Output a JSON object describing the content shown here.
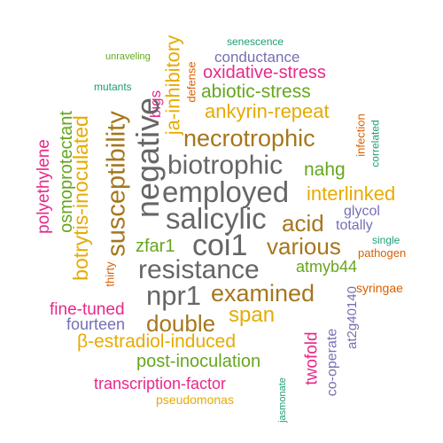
{
  "palette": {
    "teal": "#1b9e77",
    "orange": "#d95f02",
    "purple": "#7570b3",
    "magenta": "#e7298a",
    "green": "#66a61e",
    "gold": "#e6ab02",
    "brown": "#a6761d",
    "gray": "#666666"
  },
  "words": [
    {
      "text": "senescence",
      "color": "#1b9e77"
    },
    {
      "text": "unraveling",
      "color": "#66a61e"
    },
    {
      "text": "conductance",
      "color": "#7570b3"
    },
    {
      "text": "ja-inhibitory",
      "color": "#e6ab02"
    },
    {
      "text": "defense",
      "color": "#d95f02"
    },
    {
      "text": "oxidative-stress",
      "color": "#e7298a"
    },
    {
      "text": "mutants",
      "color": "#1b9e77"
    },
    {
      "text": "abiotic-stress",
      "color": "#66a61e"
    },
    {
      "text": "bigs",
      "color": "#e7298a"
    },
    {
      "text": "ankyrin-repeat",
      "color": "#e6ab02"
    },
    {
      "text": "infection",
      "color": "#d95f02"
    },
    {
      "text": "correlated",
      "color": "#1b9e77"
    },
    {
      "text": "osmoprotectant",
      "color": "#66a61e"
    },
    {
      "text": "negative",
      "color": "#666666"
    },
    {
      "text": "necrotrophic",
      "color": "#a6761d"
    },
    {
      "text": "polyethylene",
      "color": "#e7298a"
    },
    {
      "text": "botrytis-inoculated",
      "color": "#e6ab02"
    },
    {
      "text": "susceptibility",
      "color": "#a6761d"
    },
    {
      "text": "biotrophic",
      "color": "#666666"
    },
    {
      "text": "nahg",
      "color": "#66a61e"
    },
    {
      "text": "employed",
      "color": "#666666"
    },
    {
      "text": "interlinked",
      "color": "#e6ab02"
    },
    {
      "text": "salicylic",
      "color": "#666666"
    },
    {
      "text": "glycol",
      "color": "#7570b3"
    },
    {
      "text": "acid",
      "color": "#a6761d"
    },
    {
      "text": "totally",
      "color": "#7570b3"
    },
    {
      "text": "zfar1",
      "color": "#66a61e"
    },
    {
      "text": "coi1",
      "color": "#666666"
    },
    {
      "text": "various",
      "color": "#a6761d"
    },
    {
      "text": "single",
      "color": "#1b9e77"
    },
    {
      "text": "pathogen",
      "color": "#d95f02"
    },
    {
      "text": "thirty",
      "color": "#d95f02"
    },
    {
      "text": "resistance",
      "color": "#666666"
    },
    {
      "text": "atmyb44",
      "color": "#66a61e"
    },
    {
      "text": "syringae",
      "color": "#d95f02"
    },
    {
      "text": "npr1",
      "color": "#666666"
    },
    {
      "text": "examined",
      "color": "#a6761d"
    },
    {
      "text": "at2g40140",
      "color": "#7570b3"
    },
    {
      "text": "fine-tuned",
      "color": "#e7298a"
    },
    {
      "text": "double",
      "color": "#a6761d"
    },
    {
      "text": "span",
      "color": "#e6ab02"
    },
    {
      "text": "fourteen",
      "color": "#7570b3"
    },
    {
      "text": "β-estradiol-induced",
      "color": "#e6ab02"
    },
    {
      "text": "twofold",
      "color": "#e7298a"
    },
    {
      "text": "co-operate",
      "color": "#7570b3"
    },
    {
      "text": "post-inoculation",
      "color": "#66a61e"
    },
    {
      "text": "transcription-factor",
      "color": "#e7298a"
    },
    {
      "text": "jasmonate",
      "color": "#1b9e77"
    },
    {
      "text": "pseudomonas",
      "color": "#e6ab02"
    }
  ]
}
